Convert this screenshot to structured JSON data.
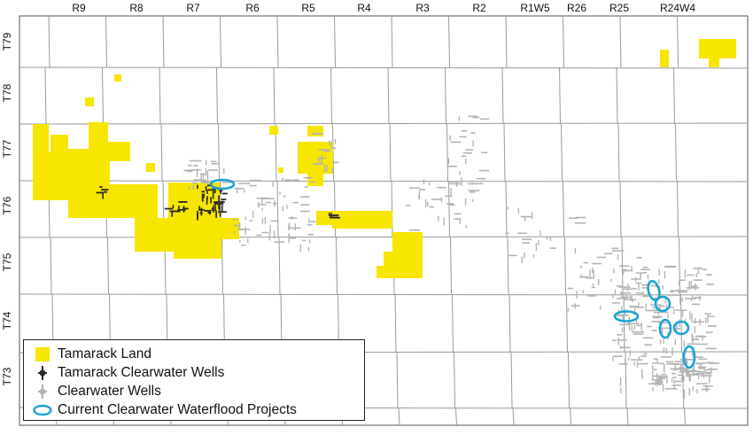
{
  "map": {
    "range_labels": [
      "R9",
      "R8",
      "R7",
      "R6",
      "R5",
      "R4",
      "R3",
      "R2",
      "R1W5",
      "R26",
      "R25",
      "R24W4"
    ],
    "township_labels": [
      "T79",
      "T78",
      "T77",
      "T76",
      "T75",
      "T74",
      "T73"
    ]
  },
  "legend": {
    "items": [
      {
        "label": "Tamarack Land",
        "symbol": "yellow-square-icon"
      },
      {
        "label": "Tamarack Clearwater Wells",
        "symbol": "dark-well-icon"
      },
      {
        "label": "Clearwater Wells",
        "symbol": "grey-well-icon"
      },
      {
        "label": "Current Clearwater Waterflood Projects",
        "symbol": "blue-ellipse-icon"
      }
    ]
  },
  "colors": {
    "land": "#f7e600",
    "tamarack_wells": "#2a2a2a",
    "clearwater_wells": "#b4b4b4",
    "waterflood": "#1aa3d6",
    "grid": "#9a9a9a"
  }
}
